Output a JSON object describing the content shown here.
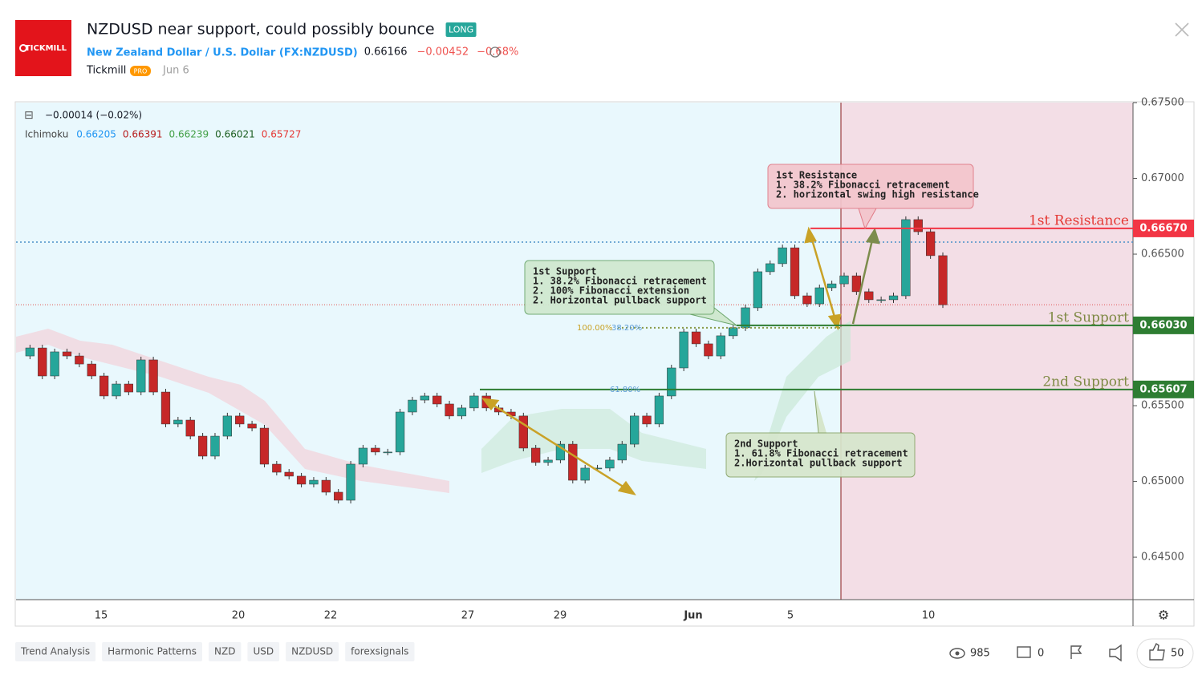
{
  "header": {
    "logo": "TICKMILL",
    "title": "NZDUSD near support, could possibly bounce",
    "badge": "LONG",
    "instrument": "New Zealand Dollar / U.S. Dollar",
    "symbol": "(FX:NZDUSD)",
    "price": "0.66166",
    "change": "−0.00452",
    "change_pct": "−0.68%",
    "author": "Tickmill",
    "author_badge": "PRO",
    "date": "Jun 6"
  },
  "chart": {
    "legend_change": "−0.00014 (−0.02%)",
    "indicator": "Ichimoku",
    "indicator_values": [
      {
        "text": "0.66205",
        "color": "#2196f3"
      },
      {
        "text": "0.66391",
        "color": "#b71c1c"
      },
      {
        "text": "0.66239",
        "color": "#43a047"
      },
      {
        "text": "0.66021",
        "color": "#1b5e20"
      },
      {
        "text": "0.65727",
        "color": "#e53935"
      }
    ],
    "ylim": [
      0.6422,
      0.675
    ],
    "yticks": [
      {
        "value": 0.645,
        "label": "0.64500"
      },
      {
        "value": 0.65,
        "label": "0.65000"
      },
      {
        "value": 0.655,
        "label": "0.65500"
      },
      {
        "value": 0.665,
        "label": "0.66500"
      },
      {
        "value": 0.67,
        "label": "0.67000"
      },
      {
        "value": 0.675,
        "label": "0.67500"
      }
    ],
    "xticks": [
      "15",
      "20",
      "22",
      "27",
      "29",
      "Jun",
      "5",
      "10"
    ],
    "current_price": 0.66166,
    "closes": [
      0.65828,
      0.65881,
      0.65696,
      0.65855,
      0.65828,
      0.65775,
      0.65696,
      0.65564,
      0.65643,
      0.6559,
      0.65802,
      0.6559,
      0.65379,
      0.65405,
      0.65299,
      0.65167,
      0.65299,
      0.65432,
      0.65379,
      0.65352,
      0.65114,
      0.65061,
      0.65035,
      0.64982,
      0.65008,
      0.64929,
      0.64876,
      0.65114,
      0.6522,
      0.65194,
      0.65194,
      0.65458,
      0.65537,
      0.65564,
      0.65511,
      0.65432,
      0.65485,
      0.65564,
      0.65485,
      0.65458,
      0.65432,
      0.6522,
      0.65125,
      0.65141,
      0.65246,
      0.65008,
      0.65088,
      0.65088,
      0.65141,
      0.65246,
      0.65432,
      0.65379,
      0.65564,
      0.65749,
      0.65987,
      0.65908,
      0.65828,
      0.65961,
      0.66014,
      0.66146,
      0.66384,
      0.66437,
      0.66542,
      0.66225,
      0.66172,
      0.66278,
      0.66304,
      0.66357,
      0.66252,
      0.66199,
      0.66199,
      0.66225,
      0.66728,
      0.66648,
      0.6649,
      0.66166
    ],
    "levels": [
      {
        "name": "1st Resistance",
        "value": 0.6667,
        "value_label": "0.66670",
        "color": "#f23645",
        "text_color": "#e53935"
      },
      {
        "name": "1st Support",
        "value": 0.6603,
        "value_label": "0.66030",
        "color": "#2e7d32",
        "text_color": "#7f8a45"
      },
      {
        "name": "2nd Support",
        "value": 0.65607,
        "value_label": "0.65607",
        "color": "#2e7d32",
        "text_color": "#7f8a45"
      }
    ],
    "fib_labels": [
      "100.00%",
      "38.20%",
      "61.80%"
    ],
    "annotations": [
      {
        "lines": [
          "1st Resistance",
          "1. 38.2% Fibonacci retracement",
          "2. horizontal swing high resistance"
        ]
      },
      {
        "lines": [
          "1st Support",
          "1. 38.2% Fibonacci retracement",
          "2. 100% Fibonacci extension",
          "2. Horizontal pullback support"
        ]
      },
      {
        "lines": [
          "2nd Support",
          "1. 61.8% Fibonacci retracement",
          "2.Horizontal pullback support"
        ]
      }
    ]
  },
  "footer": {
    "tags": [
      "Trend Analysis",
      "Harmonic Patterns",
      "NZD",
      "USD",
      "NZDUSD",
      "forexsignals"
    ],
    "views": "985",
    "comments": "0",
    "likes": "50"
  }
}
